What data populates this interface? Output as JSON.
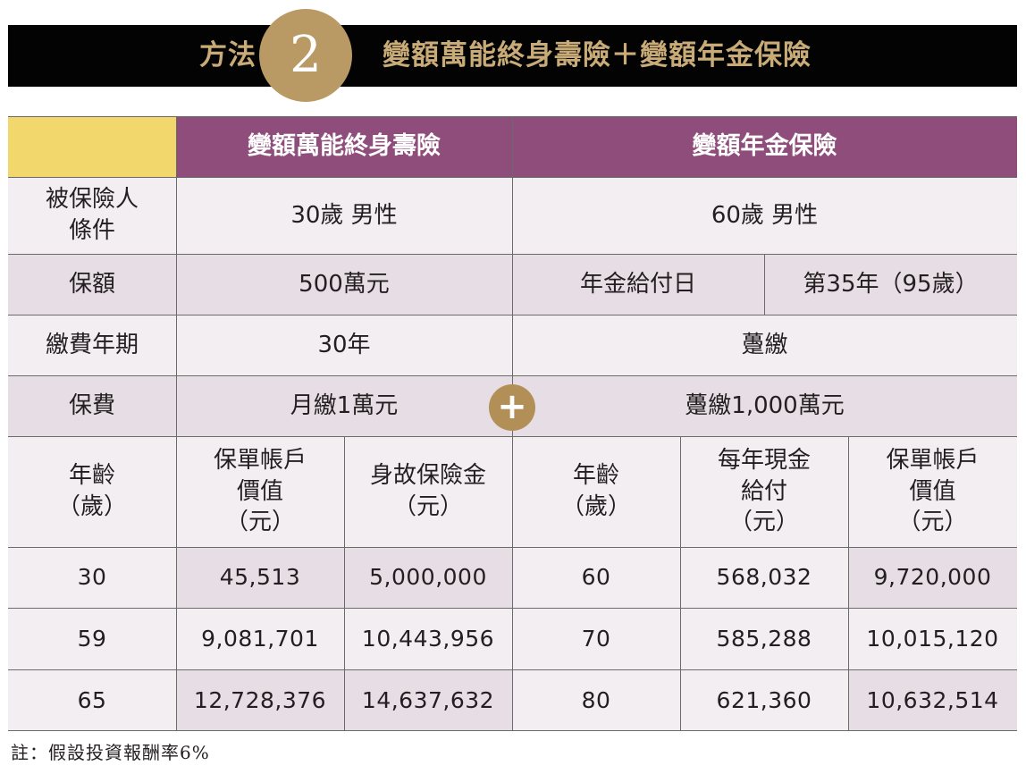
{
  "banner": {
    "lead": "方法",
    "number": "2",
    "title": "變額萬能終身壽險＋變額年金保險"
  },
  "table": {
    "columns": {
      "life": "變額萬能終身壽險",
      "annuity": "變額年金保險"
    },
    "insured": {
      "label_line1": "被保險人",
      "label_line2": "條件",
      "life": "30歲 男性",
      "annuity": "60歲 男性"
    },
    "coverage": {
      "label": "保額",
      "life": "500萬元",
      "annuity_label": "年金給付日",
      "annuity_value": "第35年（95歲）"
    },
    "term": {
      "label": "繳費年期",
      "life": "30年",
      "annuity": "躉繳"
    },
    "premium": {
      "label": "保費",
      "life": "月繳1萬元",
      "annuity": "躉繳1,000萬元",
      "plus": "+"
    },
    "sub": {
      "life_age": [
        "年齡",
        "（歲）"
      ],
      "life_account": [
        "保單帳戶",
        "價值",
        "（元）"
      ],
      "life_death": [
        "身故保險金",
        "（元）"
      ],
      "ann_age": [
        "年齡",
        "（歲）"
      ],
      "ann_cash": [
        "每年現金",
        "給付",
        "（元）"
      ],
      "ann_account": [
        "保單帳戶",
        "價值",
        "（元）"
      ]
    },
    "rows": [
      [
        "30",
        "45,513",
        "5,000,000",
        "60",
        "568,032",
        "9,720,000"
      ],
      [
        "59",
        "9,081,701",
        "10,443,956",
        "70",
        "585,288",
        "10,015,120"
      ],
      [
        "65",
        "12,728,376",
        "14,637,632",
        "80",
        "621,360",
        "10,632,514"
      ]
    ]
  },
  "note": "註：假設投資報酬率6%",
  "colors": {
    "header_purple": "#8e4d7a",
    "corner_yellow": "#f2d86c",
    "gold": "#ba9a64",
    "banner_black": "#030303"
  }
}
